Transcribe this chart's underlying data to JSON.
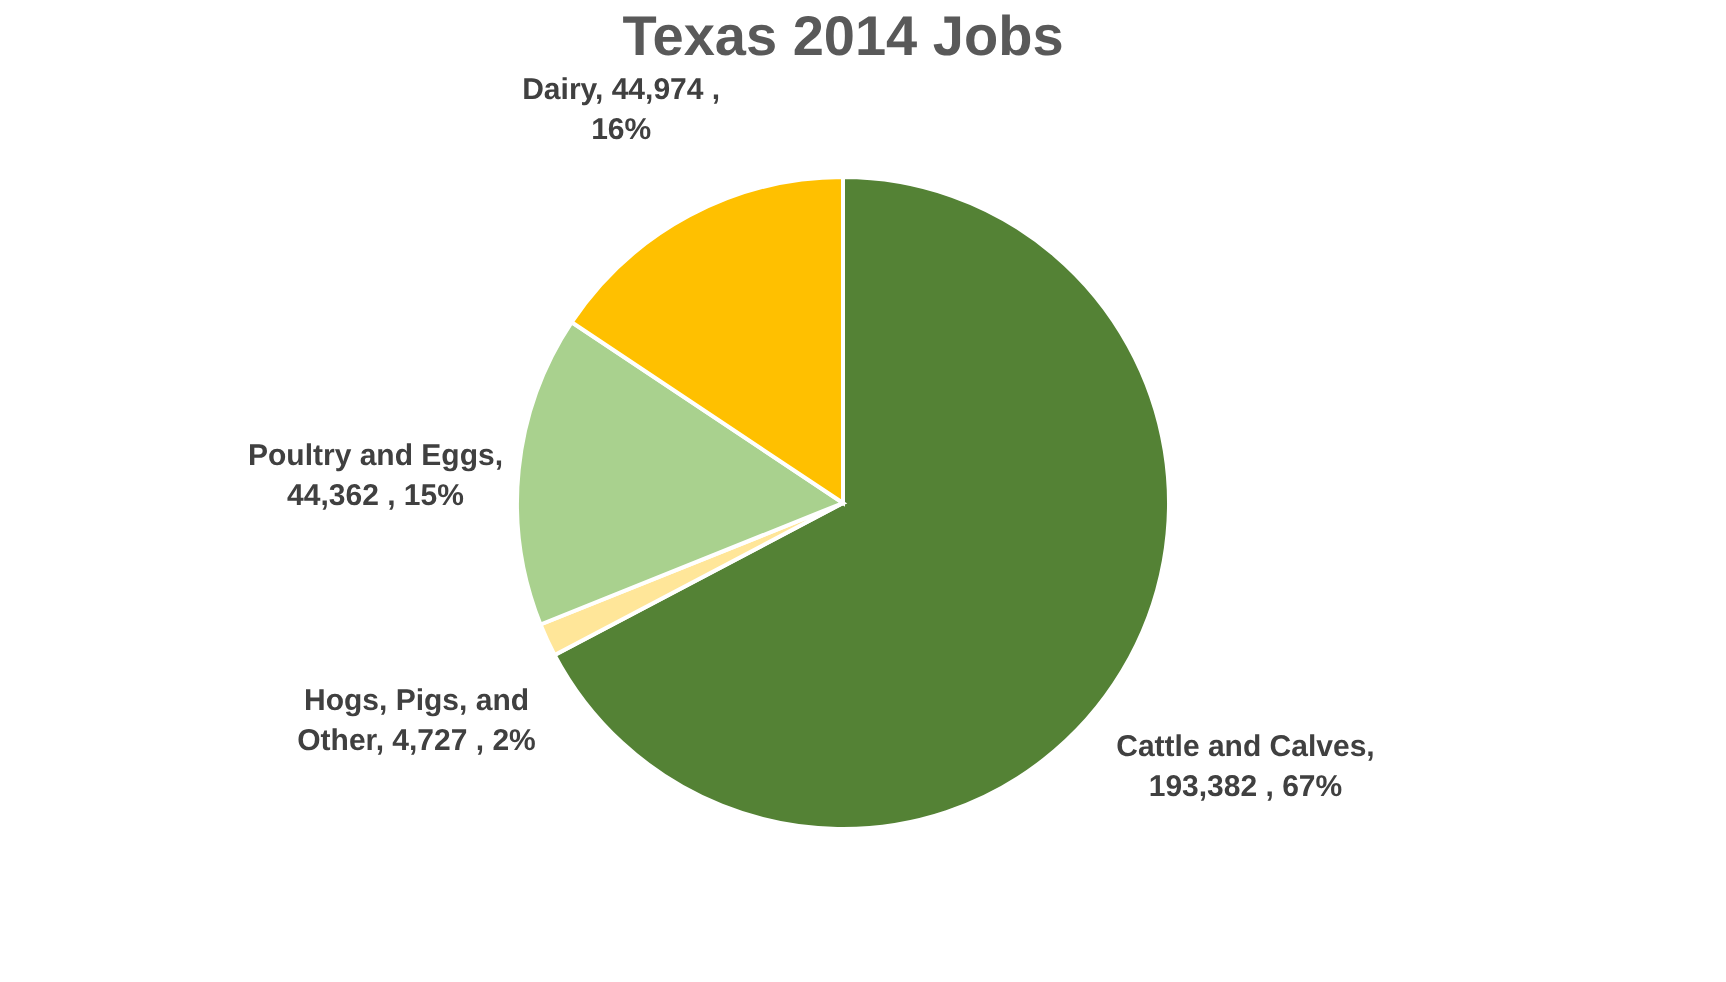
{
  "chart_data": {
    "type": "pie",
    "title": "Texas 2014 Jobs",
    "categories": [
      "Cattle and Calves",
      "Hogs, Pigs, and Other",
      "Poultry and Eggs",
      "Dairy"
    ],
    "values": [
      193382,
      4727,
      44362,
      44974
    ],
    "value_labels": [
      ",  193,382 , 67%",
      ", 4,727 , 2%",
      ", 44,362 , 15%",
      ",  44,974 , 16%"
    ],
    "colors": [
      "#548235",
      "#ffe699",
      "#a9d18e",
      "#ffc000"
    ],
    "legend": false
  }
}
